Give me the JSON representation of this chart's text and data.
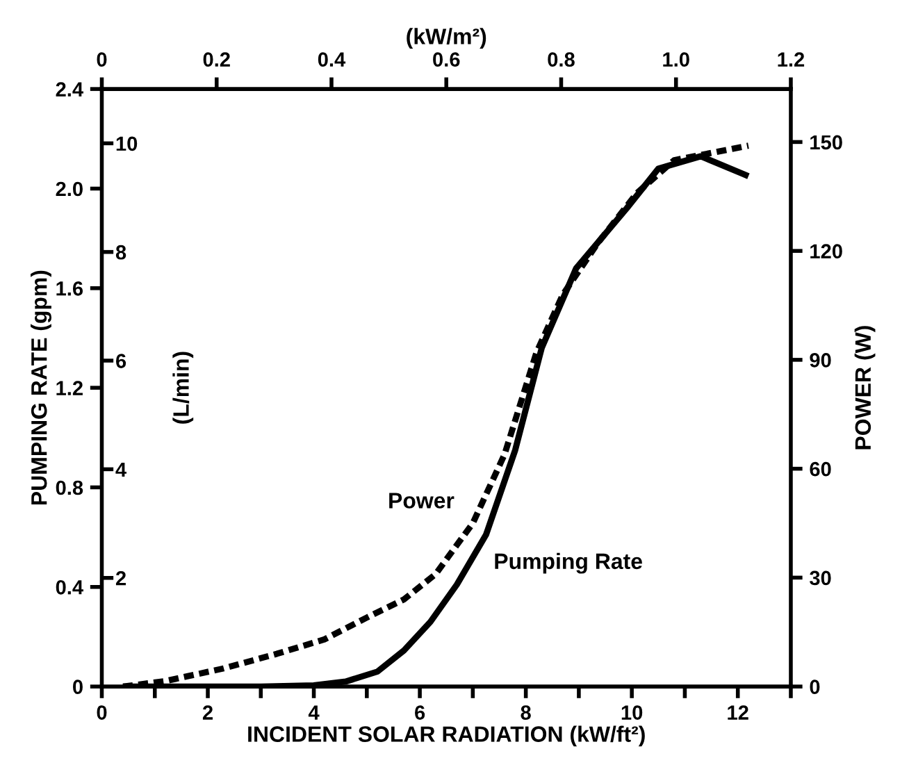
{
  "chart_data": {
    "type": "line",
    "xlabel": "INCIDENT SOLAR RADIATION (kW/ft²)",
    "x2label": "(kW/m²)",
    "ylabel": "PUMPING RATE (gpm)",
    "y2label": "POWER (W)",
    "y3label": "(L/min)",
    "xlim": [
      0,
      13
    ],
    "xticks": [
      0,
      {
        "value": 1,
        "label": null
      },
      2,
      {
        "value": 3,
        "label": null
      },
      4,
      {
        "value": 5,
        "label": null
      },
      6,
      {
        "value": 7,
        "label": null
      },
      8,
      {
        "value": 9,
        "label": null
      },
      10,
      {
        "value": 11,
        "label": null
      },
      12,
      {
        "value": 13,
        "label": null
      }
    ],
    "x2lim": [
      0,
      1.2
    ],
    "x2ticks": [
      0,
      0.2,
      0.4,
      0.6,
      0.8,
      {
        "value": 1.0,
        "label": "1.0"
      },
      1.2
    ],
    "ylim": [
      0,
      2.4
    ],
    "yticks": [
      0,
      0.4,
      0.8,
      1.2,
      1.6,
      {
        "value": 2.0,
        "label": "2.0"
      },
      2.4
    ],
    "y2lim": [
      0,
      164.6
    ],
    "y2ticks": [
      0,
      30,
      60,
      90,
      120,
      150
    ],
    "y3lim": [
      0,
      11
    ],
    "y3ticks": [
      2,
      4,
      6,
      8,
      10
    ],
    "grid": false,
    "legend": false,
    "series": [
      {
        "name": "Pumping Rate",
        "color": "#000000",
        "line_style": "solid",
        "x": [
          0.4,
          1,
          2,
          3,
          4,
          4.6,
          5.2,
          5.7,
          6.2,
          6.7,
          7.25,
          7.8,
          8.3,
          8.95,
          9.9,
          10.5,
          11.3,
          12.2
        ],
        "values": [
          0,
          0,
          0,
          0,
          0.005,
          0.02,
          0.06,
          0.145,
          0.26,
          0.41,
          0.61,
          0.95,
          1.36,
          1.68,
          1.92,
          2.08,
          2.13,
          2.05
        ]
      },
      {
        "name": "Power",
        "color": "#000000",
        "line_style": "dashed",
        "axis": "y2",
        "x": [
          0.4,
          1.2,
          2.3,
          3.3,
          4.2,
          5.0,
          5.7,
          6.3,
          7.0,
          7.6,
          8.2,
          8.7,
          9.35,
          10.1,
          10.8,
          12.2
        ],
        "values": [
          0,
          1.5,
          5,
          9,
          13,
          19,
          24,
          31,
          45,
          64,
          92,
          108,
          122,
          136,
          145,
          149
        ]
      }
    ]
  }
}
